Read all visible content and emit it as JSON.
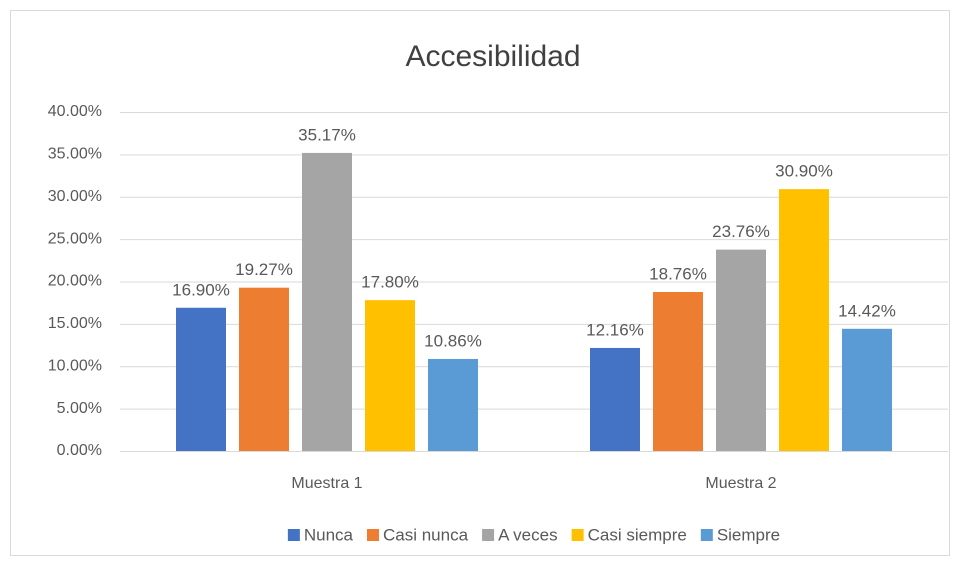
{
  "chart_data": {
    "type": "bar",
    "title": "Accesibilidad",
    "categories": [
      "Muestra 1",
      "Muestra 2"
    ],
    "series": [
      {
        "name": "Nunca",
        "color": "#4472c4",
        "values": [
          16.9,
          12.16
        ],
        "value_labels": [
          "16.90%",
          "12.16%"
        ]
      },
      {
        "name": "Casi nunca",
        "color": "#ed7d31",
        "values": [
          19.27,
          18.76
        ],
        "value_labels": [
          "19.27%",
          "18.76%"
        ]
      },
      {
        "name": "A veces",
        "color": "#a5a5a5",
        "values": [
          35.17,
          23.76
        ],
        "value_labels": [
          "35.17%",
          "23.76%"
        ]
      },
      {
        "name": "Casi siempre",
        "color": "#ffc000",
        "values": [
          17.8,
          30.9
        ],
        "value_labels": [
          "17.80%",
          "30.90%"
        ]
      },
      {
        "name": "Siempre",
        "color": "#5b9bd5",
        "values": [
          10.86,
          14.42
        ],
        "value_labels": [
          "10.86%",
          "14.42%"
        ]
      }
    ],
    "ylim": [
      0,
      40
    ],
    "yticks": [
      {
        "value": 0,
        "label": "0.00%"
      },
      {
        "value": 5,
        "label": "5.00%"
      },
      {
        "value": 10,
        "label": "10.00%"
      },
      {
        "value": 15,
        "label": "15.00%"
      },
      {
        "value": 20,
        "label": "20.00%"
      },
      {
        "value": 25,
        "label": "25.00%"
      },
      {
        "value": 30,
        "label": "30.00%"
      },
      {
        "value": 35,
        "label": "35.00%"
      },
      {
        "value": 40,
        "label": "40.00%"
      }
    ],
    "grid": true,
    "legend": "bottom"
  }
}
